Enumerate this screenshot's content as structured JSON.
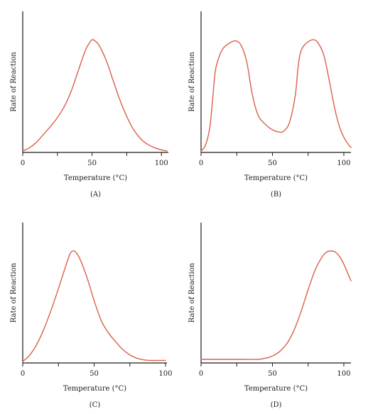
{
  "curve_color": "#d9604a",
  "chart_data": [
    {
      "type": "line",
      "label": "(A)",
      "xlabel": "Temperature (°C)",
      "ylabel": "Rate of Reaction",
      "x_ticks": [
        0,
        50,
        100
      ],
      "xlim": [
        0,
        105
      ],
      "ylim": [
        0,
        1
      ],
      "x": [
        0,
        5,
        10,
        15,
        20,
        25,
        30,
        35,
        40,
        45,
        48,
        50,
        52,
        55,
        60,
        65,
        70,
        75,
        80,
        85,
        90,
        95,
        100,
        104
      ],
      "y": [
        0.0,
        0.03,
        0.08,
        0.15,
        0.22,
        0.3,
        0.4,
        0.54,
        0.72,
        0.9,
        0.97,
        1.0,
        0.99,
        0.95,
        0.82,
        0.64,
        0.46,
        0.31,
        0.19,
        0.11,
        0.06,
        0.03,
        0.01,
        0.0
      ]
    },
    {
      "type": "line",
      "label": "(B)",
      "xlabel": "Temperature (°C)",
      "ylabel": "Rate of Reaction",
      "x_ticks": [
        0,
        50,
        100
      ],
      "xlim": [
        0,
        105
      ],
      "ylim": [
        0,
        1
      ],
      "x": [
        0,
        3,
        6,
        8,
        10,
        13,
        16,
        20,
        24,
        28,
        32,
        36,
        40,
        45,
        50,
        55,
        58,
        62,
        66,
        68,
        70,
        73,
        76,
        79,
        82,
        86,
        90,
        94,
        98,
        102,
        105
      ],
      "y": [
        0.0,
        0.05,
        0.2,
        0.45,
        0.72,
        0.86,
        0.93,
        0.97,
        0.99,
        0.95,
        0.8,
        0.5,
        0.32,
        0.24,
        0.19,
        0.17,
        0.18,
        0.26,
        0.5,
        0.76,
        0.9,
        0.96,
        0.99,
        1.0,
        0.97,
        0.86,
        0.62,
        0.36,
        0.18,
        0.08,
        0.03
      ]
    },
    {
      "type": "line",
      "label": "(C)",
      "xlabel": "Temperature (°C)",
      "ylabel": "Rate of Reaction",
      "x_ticks": [
        0,
        50,
        100
      ],
      "xlim": [
        0,
        101
      ],
      "ylim": [
        0,
        1
      ],
      "x": [
        0,
        5,
        10,
        15,
        20,
        25,
        30,
        33,
        35,
        37,
        40,
        45,
        50,
        55,
        60,
        65,
        70,
        75,
        80,
        85,
        90,
        95,
        100
      ],
      "y": [
        0.0,
        0.06,
        0.16,
        0.3,
        0.47,
        0.66,
        0.86,
        0.97,
        1.0,
        0.99,
        0.93,
        0.76,
        0.55,
        0.37,
        0.26,
        0.18,
        0.11,
        0.06,
        0.03,
        0.015,
        0.01,
        0.01,
        0.01
      ]
    },
    {
      "type": "line",
      "label": "(D)",
      "xlabel": "Temperature (°C)",
      "ylabel": "Rate of Reaction",
      "x_ticks": [
        0,
        50,
        100
      ],
      "xlim": [
        0,
        105
      ],
      "ylim": [
        0,
        1
      ],
      "x": [
        0,
        10,
        20,
        30,
        40,
        45,
        50,
        55,
        60,
        65,
        70,
        75,
        80,
        85,
        88,
        91,
        94,
        97,
        100,
        103,
        105
      ],
      "y": [
        0.02,
        0.02,
        0.02,
        0.02,
        0.02,
        0.03,
        0.05,
        0.09,
        0.16,
        0.28,
        0.45,
        0.65,
        0.83,
        0.95,
        0.99,
        1.0,
        0.99,
        0.95,
        0.88,
        0.79,
        0.73
      ]
    }
  ]
}
